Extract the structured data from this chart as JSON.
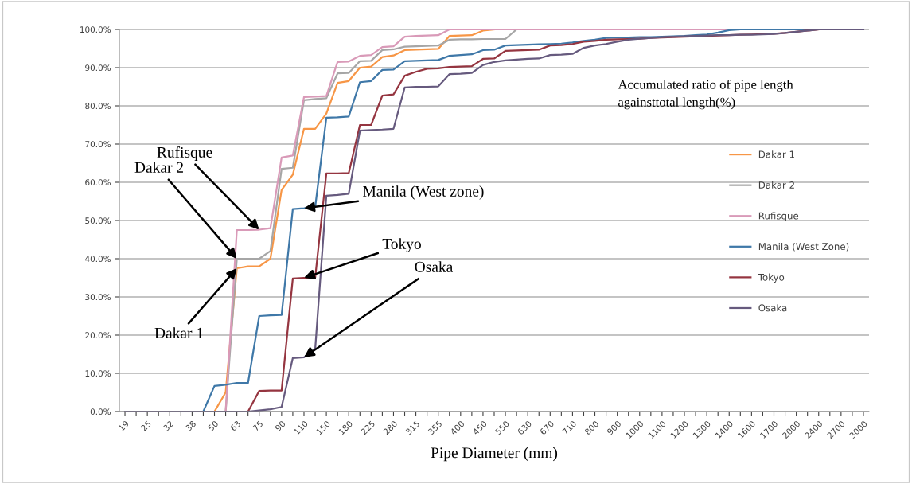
{
  "chart_data": {
    "type": "line",
    "xlabel": "Pipe Diameter (mm)",
    "categories": [
      "19",
      null,
      "25",
      null,
      "32",
      null,
      "38",
      null,
      "50",
      null,
      "63",
      null,
      "75",
      null,
      "90",
      null,
      "110",
      null,
      "150",
      null,
      "180",
      null,
      "225",
      null,
      "280",
      null,
      "315",
      null,
      "355",
      null,
      "400",
      null,
      "450",
      null,
      "550",
      null,
      "630",
      null,
      "670",
      null,
      "710",
      null,
      "800",
      null,
      "900",
      null,
      "1000",
      null,
      "1100",
      null,
      "1200",
      null,
      "1300",
      null,
      "1400",
      null,
      "1600",
      null,
      "1700",
      null,
      "2000",
      null,
      "2400",
      null,
      "2700",
      null,
      "3000"
    ],
    "series": [
      {
        "name": "Dakar 1",
        "color": "#f79646",
        "values": [
          null,
          null,
          null,
          null,
          null,
          null,
          null,
          null,
          0,
          5,
          37.5,
          38,
          38,
          40,
          58,
          62,
          74,
          74,
          78,
          86,
          86.5,
          90,
          90.3,
          92.8,
          93.2,
          94.6,
          94.7,
          94.8,
          94.9,
          98.3,
          98.4,
          98.5,
          99.7,
          100,
          null,
          null,
          null,
          null,
          null,
          null,
          null,
          null,
          null,
          null,
          null,
          null,
          null,
          null,
          null,
          null,
          null,
          null,
          null,
          null,
          null,
          null,
          null,
          null,
          null,
          null,
          null,
          null,
          null,
          null,
          null,
          null,
          null
        ]
      },
      {
        "name": "Dakar 2",
        "color": "#a6a6a6",
        "values": [
          null,
          null,
          null,
          null,
          null,
          null,
          null,
          null,
          null,
          0,
          40,
          40,
          40,
          42,
          63.5,
          63.8,
          81.5,
          81.8,
          82,
          88.5,
          88.6,
          91.7,
          91.8,
          94.6,
          94.8,
          95.5,
          95.6,
          95.7,
          95.8,
          97.3,
          97.4,
          97.4,
          97.5,
          97.5,
          97.5,
          100,
          null,
          null,
          null,
          null,
          null,
          null,
          null,
          null,
          null,
          null,
          null,
          null,
          null,
          null,
          null,
          null,
          null,
          null,
          null,
          null,
          null,
          null,
          null,
          null,
          null,
          null,
          null,
          null,
          null,
          null,
          null
        ]
      },
      {
        "name": "Rufisque",
        "color": "#d99ab8",
        "values": [
          null,
          null,
          null,
          null,
          null,
          null,
          null,
          null,
          null,
          0,
          47.5,
          47.5,
          47.6,
          48,
          66.5,
          67,
          82.3,
          82.4,
          82.6,
          91.5,
          91.6,
          93.1,
          93.3,
          95.4,
          95.6,
          98.1,
          98.3,
          98.4,
          98.5,
          100,
          100,
          100,
          100,
          100,
          100,
          100,
          100,
          100,
          100,
          100,
          100,
          100,
          100,
          100,
          100,
          100,
          100,
          100,
          100,
          100,
          100,
          100,
          100,
          100,
          100,
          null,
          null,
          null,
          null,
          null,
          null,
          null,
          null,
          null,
          null,
          null,
          null
        ]
      },
      {
        "name": "Manila (West Zone)",
        "color": "#3f78a8",
        "values": [
          null,
          null,
          null,
          null,
          null,
          null,
          0,
          0,
          6.7,
          7,
          7.5,
          7.5,
          25,
          25.2,
          25.3,
          53,
          53.2,
          53.5,
          76.9,
          77,
          77.2,
          86.2,
          86.5,
          89.4,
          89.5,
          91.7,
          91.8,
          91.9,
          92,
          93.1,
          93.3,
          93.5,
          94.6,
          94.7,
          95.8,
          95.9,
          96,
          96.1,
          96.2,
          96.3,
          96.6,
          97,
          97.3,
          97.8,
          97.9,
          97.9,
          98,
          98,
          98.1,
          98.2,
          98.3,
          98.5,
          98.7,
          99.2,
          99.8,
          100,
          100,
          100,
          100,
          100,
          100,
          100,
          100,
          null,
          null,
          null,
          null
        ]
      },
      {
        "name": "Tokyo",
        "color": "#953540",
        "values": [
          null,
          null,
          null,
          null,
          null,
          null,
          null,
          null,
          null,
          null,
          null,
          0,
          5.4,
          5.5,
          5.5,
          34.8,
          35,
          35,
          62.3,
          62.3,
          62.4,
          75,
          75,
          82.7,
          83,
          87.9,
          88.9,
          89.7,
          89.8,
          90.2,
          90.3,
          90.4,
          92.3,
          92.4,
          94.4,
          94.5,
          94.6,
          94.7,
          95.8,
          95.9,
          96.2,
          96.8,
          97,
          97.3,
          97.4,
          97.5,
          97.6,
          97.8,
          97.9,
          98,
          98.1,
          98.2,
          98.3,
          98.4,
          98.5,
          98.6,
          98.7,
          98.8,
          98.9,
          99.1,
          99.4,
          99.7,
          100,
          null,
          null,
          null,
          null
        ]
      },
      {
        "name": "Osaka",
        "color": "#665a7e",
        "values": [
          0,
          0,
          0,
          0,
          0,
          0,
          0,
          0,
          0,
          0,
          0,
          0,
          0.3,
          0.6,
          1.2,
          14,
          14.2,
          16.3,
          56.5,
          56.7,
          57,
          73.5,
          73.7,
          73.8,
          74,
          84.8,
          85,
          85,
          85.1,
          88.3,
          88.4,
          88.6,
          90.7,
          91.5,
          91.9,
          92.1,
          92.3,
          92.4,
          93.3,
          93.4,
          93.6,
          95.2,
          95.8,
          96.2,
          96.8,
          97.3,
          97.6,
          97.8,
          98,
          98.1,
          98.2,
          98.3,
          98.4,
          98.5,
          98.5,
          98.6,
          98.6,
          98.7,
          98.8,
          99.1,
          99.4,
          99.7,
          100,
          100,
          100,
          100,
          100
        ]
      }
    ],
    "ylim": [
      0,
      100
    ],
    "yticks": [
      {
        "value": 0,
        "label": "0.0%"
      },
      {
        "value": 10,
        "label": "10.0%"
      },
      {
        "value": 20,
        "label": "20.0%"
      },
      {
        "value": 30,
        "label": "30.0%"
      },
      {
        "value": 40,
        "label": "40.0%"
      },
      {
        "value": 50,
        "label": "50.0%"
      },
      {
        "value": 60,
        "label": "60.0%"
      },
      {
        "value": 70,
        "label": "70.0%"
      },
      {
        "value": 80,
        "label": "80.0%"
      },
      {
        "value": 90,
        "label": "90.0%"
      },
      {
        "value": 100,
        "label": "100.0%"
      }
    ],
    "grid": "y",
    "legend": "right",
    "marker": "none",
    "line_style": "solid",
    "annotations": [
      "Accumulated ratio of pipe length\nagainsttotal length(%)",
      {
        "text": "Rufisque",
        "x": "75",
        "y": 47.6
      },
      {
        "text": "Dakar 2",
        "x": "63",
        "y": 40
      },
      {
        "text": "Dakar 1",
        "x": "63",
        "y": 37.5
      },
      {
        "text": "Manila (West zone)",
        "x": "110",
        "y": 53.2
      },
      {
        "text": "Tokyo",
        "x": "110",
        "y": 35
      },
      {
        "text": "Osaka",
        "x": "110",
        "y": 14.2
      }
    ]
  }
}
